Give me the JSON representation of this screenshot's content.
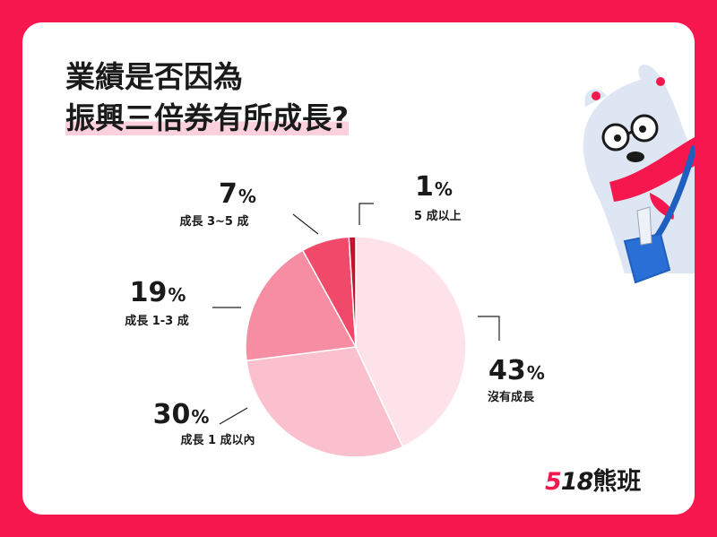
{
  "title_lines": [
    "業績是否因為",
    "振興三倍券有所成長?"
  ],
  "brand": {
    "digits_accent": "5",
    "digits": "18",
    "name": "熊班"
  },
  "colors": {
    "background": "#f5174e",
    "slices": [
      "#fde3e9",
      "#fbc0cd",
      "#f68da2",
      "#f0496a",
      "#c8102e"
    ],
    "slice_stroke": "#ffffff",
    "leader": "#222222"
  },
  "mascot": {
    "icon": "polar-bear-mascot-icon"
  },
  "chart_data": {
    "type": "pie",
    "title": "業績是否因為振興三倍券有所成長?",
    "start": "12 o'clock, clockwise",
    "slices": [
      {
        "label": "沒有成長",
        "value": 43,
        "display": "43"
      },
      {
        "label": "成長 1 成以內",
        "value": 30,
        "display": "30"
      },
      {
        "label": "成長 1-3 成",
        "value": 19,
        "display": "19"
      },
      {
        "label": "成長 3~5 成",
        "value": 7,
        "display": "7"
      },
      {
        "label": "5 成以上",
        "value": 1,
        "display": "1"
      }
    ],
    "percent_sign": "%"
  }
}
